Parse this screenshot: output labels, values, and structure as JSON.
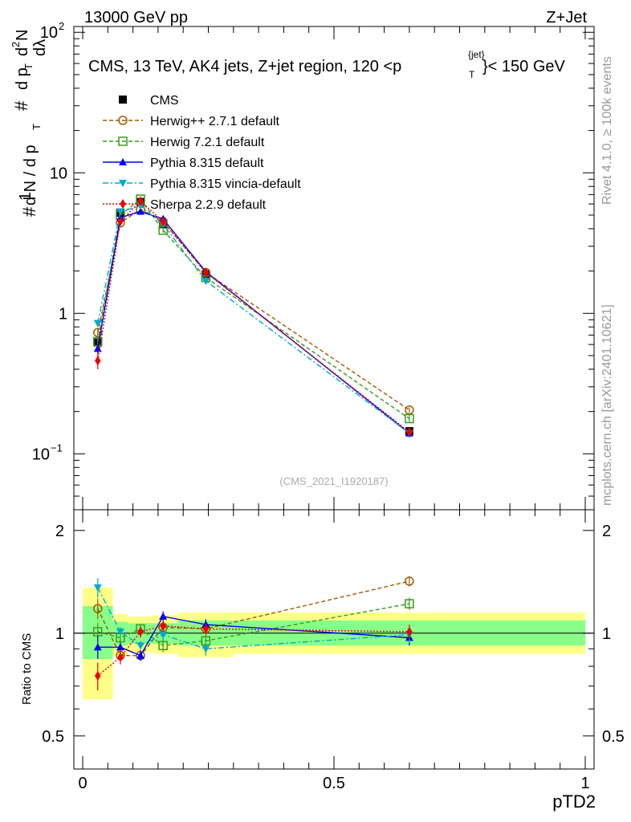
{
  "header": {
    "left": "13000 GeV pp",
    "right": "Z+Jet"
  },
  "side_text": {
    "rivet": "Rivet 4.1.0, ≥ 100k events",
    "mcplots": "mcplots.cern.ch [arXiv:2401.10621]"
  },
  "main_plot": {
    "title": "CMS, 13 TeV, AK4 jets, Z+jet region, 120 <p",
    "title_sup": "{jet}",
    "title_sub": "T",
    "title_end": "}< 150 GeV",
    "watermark": "(CMS_2021_I1920187)",
    "ylabel": {
      "a": "#",
      "frac_num": "1",
      "frac_den": "d N / d p",
      "sub_t": "T",
      "b": "#",
      "d2n": "d",
      "sup2": "2",
      "n": "N",
      "dpt": "d p",
      "dl": "dλ"
    },
    "yticks": [
      {
        "v": 0.1,
        "base": "10",
        "exp": "−1"
      },
      {
        "v": 1,
        "base": "1",
        "exp": ""
      },
      {
        "v": 10,
        "base": "10",
        "exp": ""
      },
      {
        "v": 100,
        "base": "10",
        "exp": "2"
      }
    ]
  },
  "ratio_plot": {
    "ylabel": "Ratio to CMS",
    "yticks": [
      {
        "v": 0.5,
        "label": "0.5"
      },
      {
        "v": 1,
        "label": "1"
      },
      {
        "v": 2,
        "label": "2"
      }
    ]
  },
  "xaxis": {
    "label": "pTD2",
    "ticks": [
      {
        "v": 0,
        "label": "0"
      },
      {
        "v": 0.5,
        "label": "0.5"
      },
      {
        "v": 1,
        "label": "1"
      }
    ]
  },
  "chart_data": {
    "type": "line",
    "xlabel": "pTD2",
    "xlim": [
      0,
      1
    ],
    "main_ylim": [
      0.04,
      110
    ],
    "main_yscale": "log",
    "ratio_ylim": [
      0.4,
      2.3
    ],
    "ratio_yscale": "log",
    "legend_position": "top-left",
    "x": [
      0.03,
      0.075,
      0.115,
      0.16,
      0.245,
      0.65
    ],
    "bands": [
      {
        "x0": 0.0,
        "x1": 0.06,
        "y1_lo": 0.84,
        "y1_hi": 1.2,
        "y2_lo": 0.64,
        "y2_hi": 1.36
      },
      {
        "x0": 0.06,
        "x1": 0.09,
        "y1_lo": 0.92,
        "y1_hi": 1.08,
        "y2_lo": 0.86,
        "y2_hi": 1.14
      },
      {
        "x0": 0.09,
        "x1": 0.14,
        "y1_lo": 0.93,
        "y1_hi": 1.07,
        "y2_lo": 0.88,
        "y2_hi": 1.12
      },
      {
        "x0": 0.14,
        "x1": 0.19,
        "y1_lo": 0.93,
        "y1_hi": 1.07,
        "y2_lo": 0.87,
        "y2_hi": 1.13
      },
      {
        "x0": 0.19,
        "x1": 0.3,
        "y1_lo": 0.92,
        "y1_hi": 1.09,
        "y2_lo": 0.85,
        "y2_hi": 1.15
      },
      {
        "x0": 0.3,
        "x1": 1.0,
        "y1_lo": 0.92,
        "y1_hi": 1.09,
        "y2_lo": 0.87,
        "y2_hi": 1.15
      }
    ],
    "series": [
      {
        "name": "CMS",
        "color": "#000000",
        "marker": "square-filled",
        "dash": "",
        "values": [
          0.62,
          5.2,
          6.2,
          4.3,
          1.9,
          0.145
        ],
        "errors": [
          0.05,
          0.2,
          0.25,
          0.2,
          0.1,
          0.01
        ],
        "ratio": [
          1.0,
          1.0,
          1.0,
          1.0,
          1.0,
          1.0
        ],
        "ratio_errors": [
          0.0,
          0.0,
          0.0,
          0.0,
          0.0,
          0.0
        ]
      },
      {
        "name": "Herwig++ 2.7.1 default",
        "color": "#a05a00",
        "marker": "circle-open",
        "dash": "5,3",
        "values": [
          0.73,
          4.4,
          5.5,
          4.5,
          1.95,
          0.205
        ],
        "errors": [
          0.04,
          0.15,
          0.15,
          0.15,
          0.08,
          0.01
        ],
        "ratio": [
          1.18,
          0.86,
          0.86,
          1.04,
          1.03,
          1.42
        ],
        "ratio_errors": [
          0.08,
          0.03,
          0.03,
          0.04,
          0.04,
          0.05
        ]
      },
      {
        "name": "Herwig 7.2.1 default",
        "color": "#3a9a1a",
        "marker": "square-open",
        "dash": "5,3",
        "values": [
          0.63,
          5.0,
          6.5,
          3.9,
          1.8,
          0.178
        ],
        "errors": [
          0.04,
          0.15,
          0.2,
          0.15,
          0.08,
          0.01
        ],
        "ratio": [
          1.01,
          0.97,
          1.03,
          0.92,
          0.95,
          1.22
        ],
        "ratio_errors": [
          0.06,
          0.03,
          0.03,
          0.04,
          0.04,
          0.05
        ]
      },
      {
        "name": "Pythia 8.315 default",
        "color": "#0000ee",
        "marker": "triangle-up",
        "dash": "",
        "values": [
          0.56,
          4.8,
          5.3,
          4.7,
          1.98,
          0.14
        ],
        "errors": [
          0.04,
          0.15,
          0.15,
          0.15,
          0.08,
          0.01
        ],
        "ratio": [
          0.91,
          0.91,
          0.86,
          1.12,
          1.06,
          0.97
        ],
        "ratio_errors": [
          0.07,
          0.03,
          0.03,
          0.04,
          0.04,
          0.05
        ]
      },
      {
        "name": "Pythia 8.315 vincia-default",
        "color": "#00aacc",
        "marker": "triangle-down",
        "dash": "7,3,2,3",
        "values": [
          0.85,
          5.3,
          5.8,
          4.3,
          1.7,
          0.14
        ],
        "errors": [
          0.05,
          0.15,
          0.15,
          0.15,
          0.08,
          0.01
        ],
        "ratio": [
          1.36,
          1.01,
          0.92,
          0.99,
          0.9,
          0.99
        ],
        "ratio_errors": [
          0.09,
          0.03,
          0.03,
          0.04,
          0.04,
          0.05
        ]
      },
      {
        "name": "Sherpa 2.2.9 default",
        "color": "#ee0000",
        "marker": "diamond",
        "dash": "2,2",
        "values": [
          0.46,
          4.5,
          6.3,
          4.5,
          1.95,
          0.143
        ],
        "errors": [
          0.06,
          0.2,
          0.2,
          0.15,
          0.08,
          0.01
        ],
        "ratio": [
          0.75,
          0.85,
          1.01,
          1.05,
          1.03,
          1.01
        ],
        "ratio_errors": [
          0.07,
          0.04,
          0.04,
          0.04,
          0.04,
          0.05
        ]
      }
    ]
  }
}
